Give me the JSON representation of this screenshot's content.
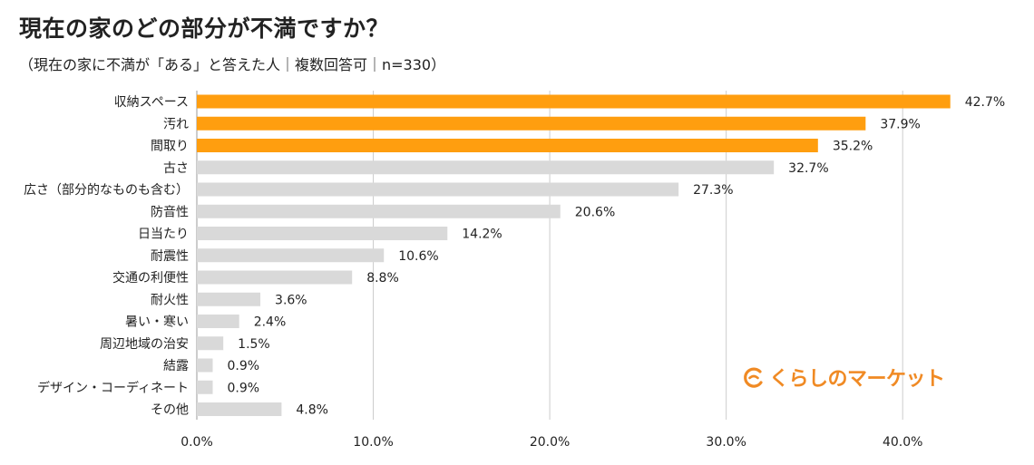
{
  "title": "現在の家のどの部分が不満ですか？",
  "subtitle": "（現在の家に不満が「ある」と答えた人｜複数回答可｜n=330）",
  "logo_text": "くらしのマーケット",
  "colors": {
    "highlight": "#ff9e0f",
    "bar": "#d9d9d9",
    "grid": "#cccccc",
    "text": "#222222",
    "brand": "#f08a24"
  },
  "chart_data": {
    "type": "bar",
    "orientation": "horizontal",
    "categories": [
      "収納スペース",
      "汚れ",
      "間取り",
      "古さ",
      "広さ（部分的なものも含む）",
      "防音性",
      "日当たり",
      "耐震性",
      "交通の利便性",
      "耐火性",
      "暑い・寒い",
      "周辺地域の治安",
      "結露",
      "デザイン・コーディネート",
      "その他"
    ],
    "values": [
      42.7,
      37.9,
      35.2,
      32.7,
      27.3,
      20.6,
      14.2,
      10.6,
      8.8,
      3.6,
      2.4,
      1.5,
      0.9,
      0.9,
      4.8
    ],
    "data_labels": [
      "42.7%",
      "37.9%",
      "35.2%",
      "32.7%",
      "27.3%",
      "20.6%",
      "14.2%",
      "10.6%",
      "8.8%",
      "3.6%",
      "2.4%",
      "1.5%",
      "0.9%",
      "0.9%",
      "4.8%"
    ],
    "highlighted_count": 3,
    "xlim": [
      0,
      43
    ],
    "ticks": [
      0,
      10,
      20,
      30,
      40
    ],
    "tick_labels": [
      "0.0%",
      "10.0%",
      "20.0%",
      "30.0%",
      "40.0%"
    ],
    "grid": true,
    "legend": "none"
  }
}
